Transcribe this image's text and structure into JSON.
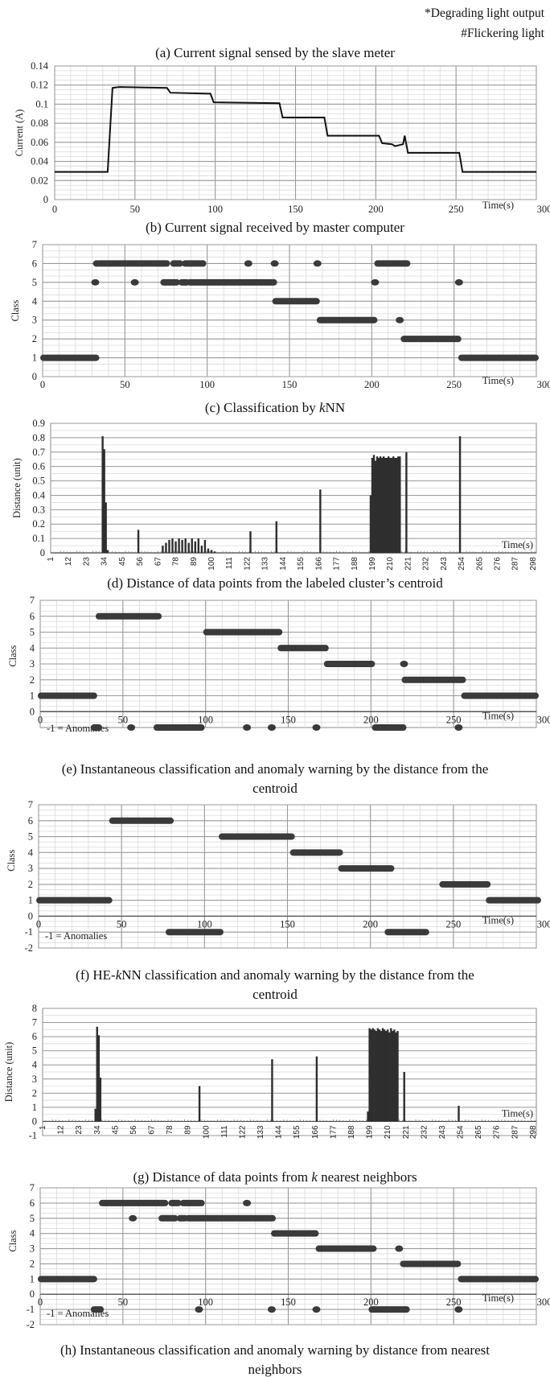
{
  "notes": {
    "line1": "*Degrading light output",
    "line2": "#Flickering light"
  },
  "panels": [
    {
      "caption_lines": [
        "(a) Current signal sensed by the slave meter"
      ],
      "chart": {
        "type": "line",
        "ylabel": "Current (A)",
        "xlabel": "Time(s)",
        "xlim": [
          0,
          300
        ],
        "ylim": [
          0,
          0.14
        ],
        "x_ticks": [
          0,
          50,
          100,
          150,
          200,
          250,
          300
        ],
        "y_ticks": [
          "0",
          "0.02",
          "0.04",
          "0.06",
          "0.08",
          "0.1",
          "0.12",
          "0.14"
        ],
        "x": [
          0,
          33,
          36,
          40,
          70,
          72,
          97,
          99,
          140,
          142,
          168,
          170,
          202,
          204,
          210,
          212,
          217,
          218,
          219,
          220,
          252,
          254,
          300
        ],
        "y": [
          0.029,
          0.029,
          0.117,
          0.118,
          0.117,
          0.112,
          0.111,
          0.102,
          0.101,
          0.086,
          0.086,
          0.067,
          0.067,
          0.059,
          0.058,
          0.056,
          0.058,
          0.067,
          0.058,
          0.049,
          0.049,
          0.029,
          0.029
        ]
      }
    },
    {
      "caption_lines": [
        "(b) Current signal received by master computer"
      ],
      "chart": {
        "type": "scatter",
        "ylabel": "Class",
        "xlabel": "Time(s)",
        "xlim": [
          0,
          300
        ],
        "ylim": [
          0,
          7
        ],
        "x_ticks": [
          0,
          50,
          100,
          150,
          200,
          250,
          300
        ],
        "y_ticks": [
          "0",
          "1",
          "2",
          "3",
          "4",
          "5",
          "6",
          "7"
        ],
        "segments": [
          {
            "x": [
              0,
              33
            ],
            "y": 1
          },
          {
            "x": 32,
            "y": 5
          },
          {
            "x": 33,
            "y": 6
          },
          {
            "x": 33,
            "y": 6
          },
          {
            "x": [
              34,
              76
            ],
            "y": 6
          },
          {
            "x": 56,
            "y": 5
          },
          {
            "x": [
              73,
              82
            ],
            "y": 5
          },
          {
            "x": [
              79,
              84
            ],
            "y": 6
          },
          {
            "x": [
              84,
              88
            ],
            "y": 5
          },
          {
            "x": [
              86,
              98
            ],
            "y": 6
          },
          {
            "x": [
              89,
              141
            ],
            "y": 5
          },
          {
            "x": 125,
            "y": 6
          },
          {
            "x": 141,
            "y": 6
          },
          {
            "x": [
              141,
              167
            ],
            "y": 4
          },
          {
            "x": 167,
            "y": 6
          },
          {
            "x": [
              168,
              202
            ],
            "y": 3
          },
          {
            "x": 202,
            "y": 5
          },
          {
            "x": [
              203,
              222
            ],
            "y": 6
          },
          {
            "x": 217,
            "y": 3
          },
          {
            "x": [
              219,
              253
            ],
            "y": 2
          },
          {
            "x": 253,
            "y": 5
          },
          {
            "x": [
              254,
              300
            ],
            "y": 1
          }
        ]
      }
    },
    {
      "caption_lines": [
        "(c) Classification by ",
        "NN"
      ],
      "caption_italic": "k",
      "chart": {
        "type": "bar",
        "ylabel": "Distance (unit)",
        "xlabel": "Time(s)",
        "ylim": [
          0,
          0.9
        ],
        "y_ticks": [
          "0",
          "0.1",
          "0.2",
          "0.3",
          "0.4",
          "0.5",
          "0.6",
          "0.7",
          "0.8",
          "0.9"
        ],
        "categories": [
          "1",
          "12",
          "23",
          "34",
          "45",
          "56",
          "67",
          "78",
          "89",
          "100",
          "111",
          "122",
          "133",
          "144",
          "155",
          "166",
          "177",
          "188",
          "199",
          "210",
          "221",
          "232",
          "243",
          "254",
          "265",
          "276",
          "287",
          "298"
        ],
        "x": [
          33,
          34,
          35,
          36,
          55,
          70,
          72,
          74,
          76,
          78,
          80,
          82,
          84,
          86,
          88,
          90,
          92,
          94,
          96,
          98,
          100,
          102,
          124,
          140,
          167,
          198,
          199,
          200,
          201,
          202,
          203,
          204,
          205,
          206,
          207,
          208,
          209,
          210,
          211,
          212,
          213,
          214,
          215,
          216,
          220,
          253
        ],
        "values": [
          0.81,
          0.72,
          0.35,
          0.02,
          0.16,
          0.05,
          0.07,
          0.09,
          0.1,
          0.08,
          0.1,
          0.09,
          0.1,
          0.07,
          0.1,
          0.08,
          0.1,
          0.05,
          0.09,
          0.03,
          0.02,
          0.01,
          0.15,
          0.22,
          0.44,
          0.4,
          0.66,
          0.68,
          0.64,
          0.67,
          0.66,
          0.67,
          0.66,
          0.67,
          0.66,
          0.66,
          0.67,
          0.66,
          0.66,
          0.67,
          0.66,
          0.66,
          0.67,
          0.67,
          0.7,
          0.81
        ]
      }
    },
    {
      "caption_lines": [
        "(d) Distance of data points from the labeled cluster’s centroid"
      ],
      "chart": {
        "type": "scatter",
        "ylabel": "Class",
        "xlabel": "Time(s)",
        "legend": "-1 = Anomalies",
        "xlim": [
          0,
          300
        ],
        "ylim": [
          -1,
          7
        ],
        "x_ticks": [
          0,
          50,
          100,
          150,
          200,
          250,
          300
        ],
        "y_ticks": [
          "0",
          "1",
          "2",
          "3",
          "4",
          "5",
          "6",
          "7"
        ],
        "segments": [
          {
            "x": [
              0,
              33
            ],
            "y": 1
          },
          {
            "x": [
              35,
              72
            ],
            "y": 6
          },
          {
            "x": [
              100,
              145
            ],
            "y": 5
          },
          {
            "x": [
              145,
              173
            ],
            "y": 4
          },
          {
            "x": [
              173,
              201
            ],
            "y": 3
          },
          {
            "x": 220,
            "y": 3
          },
          {
            "x": [
              220,
              256
            ],
            "y": 2
          },
          {
            "x": [
              256,
              300
            ],
            "y": 1
          },
          {
            "x": [
              32,
              36
            ],
            "y": -1
          },
          {
            "x": 55,
            "y": -1
          },
          {
            "x": [
              70,
              98
            ],
            "y": -1
          },
          {
            "x": 125,
            "y": -1
          },
          {
            "x": 140,
            "y": -1
          },
          {
            "x": 167,
            "y": -1
          },
          {
            "x": [
              202,
              220
            ],
            "y": -1
          },
          {
            "x": 253,
            "y": -1
          }
        ]
      }
    },
    {
      "caption_lines": [
        "(e) Instantaneous classification and anomaly warning by the distance from the",
        "centroid"
      ],
      "chart": {
        "type": "scatter",
        "ylabel": "Class",
        "xlabel": "Time(s)",
        "legend": "-1 = Anomalies",
        "xlim": [
          0,
          300
        ],
        "ylim": [
          -2,
          7
        ],
        "x_ticks": [
          0,
          50,
          100,
          150,
          200,
          250,
          300
        ],
        "y_ticks": [
          "-2",
          "-1",
          "0",
          "1",
          "2",
          "3",
          "4",
          "5",
          "6",
          "7"
        ],
        "segments": [
          {
            "x": [
              0,
              43
            ],
            "y": 1
          },
          {
            "x": [
              44,
              80
            ],
            "y": 6
          },
          {
            "x": [
              110,
              153
            ],
            "y": 5
          },
          {
            "x": [
              153,
              182
            ],
            "y": 4
          },
          {
            "x": [
              182,
              213
            ],
            "y": 3
          },
          {
            "x": [
              243,
              271
            ],
            "y": 2
          },
          {
            "x": [
              271,
              310
            ],
            "y": 1
          },
          {
            "x": [
              78,
              110
            ],
            "y": -1
          },
          {
            "x": [
              210,
              234
            ],
            "y": -1
          }
        ]
      }
    },
    {
      "caption_lines": [
        "(f) HE-",
        "NN classification and anomaly warning by the distance from the",
        "centroid"
      ],
      "caption_italic": "k",
      "chart": {
        "type": "bar",
        "ylabel": "Distance (unit)",
        "xlabel": "Time(s)",
        "ylim": [
          -1,
          8
        ],
        "y_ticks": [
          "-1",
          "0",
          "1",
          "2",
          "3",
          "4",
          "5",
          "6",
          "7",
          "8"
        ],
        "categories": [
          "1",
          "12",
          "23",
          "34",
          "45",
          "56",
          "67",
          "78",
          "89",
          "100",
          "111",
          "122",
          "133",
          "144",
          "155",
          "166",
          "177",
          "188",
          "199",
          "210",
          "221",
          "232",
          "243",
          "254",
          "265",
          "276",
          "287",
          "298"
        ],
        "x": [
          33,
          34,
          35,
          36,
          96,
          140,
          167,
          198,
          199,
          200,
          201,
          202,
          203,
          204,
          205,
          206,
          207,
          208,
          209,
          210,
          211,
          212,
          213,
          214,
          215,
          216,
          220,
          253
        ],
        "values": [
          0.9,
          6.7,
          6.1,
          3.1,
          2.5,
          4.4,
          4.6,
          0.7,
          6.6,
          6.5,
          6.6,
          6.5,
          6.4,
          6.6,
          6.5,
          6.4,
          6.6,
          6.5,
          6.4,
          6.5,
          6.3,
          6.6,
          6.4,
          6.5,
          6.3,
          6.4,
          3.5,
          1.1
        ]
      }
    },
    {
      "caption_lines": [
        "(g) Distance of data points from ",
        " nearest neighbors"
      ],
      "caption_italic": "k",
      "chart": {
        "type": "scatter",
        "ylabel": "Class",
        "xlabel": "Time(s)",
        "legend": "-1 = Anomalies",
        "xlim": [
          0,
          300
        ],
        "ylim": [
          -2,
          7
        ],
        "x_ticks": [
          0,
          50,
          100,
          150,
          200,
          250,
          300
        ],
        "y_ticks": [
          "-2",
          "-1",
          "0",
          "1",
          "2",
          "3",
          "4",
          "5",
          "6",
          "7"
        ],
        "segments": [
          {
            "x": [
              0,
              33
            ],
            "y": 1
          },
          {
            "x": [
              37,
              76
            ],
            "y": 6
          },
          {
            "x": 56,
            "y": 5
          },
          {
            "x": [
              73,
              82
            ],
            "y": 5
          },
          {
            "x": [
              79,
              84
            ],
            "y": 6
          },
          {
            "x": [
              84,
              88
            ],
            "y": 5
          },
          {
            "x": [
              86,
              98
            ],
            "y": 6
          },
          {
            "x": [
              89,
              141
            ],
            "y": 5
          },
          {
            "x": 125,
            "y": 6
          },
          {
            "x": [
              141,
              167
            ],
            "y": 4
          },
          {
            "x": [
              168,
              202
            ],
            "y": 3
          },
          {
            "x": 217,
            "y": 3
          },
          {
            "x": [
              219,
              253
            ],
            "y": 2
          },
          {
            "x": [
              254,
              300
            ],
            "y": 1
          },
          {
            "x": [
              32,
              37
            ],
            "y": -1
          },
          {
            "x": 96,
            "y": -1
          },
          {
            "x": 140,
            "y": -1
          },
          {
            "x": 167,
            "y": -1
          },
          {
            "x": [
              200,
              222
            ],
            "y": -1
          },
          {
            "x": 253,
            "y": -1
          }
        ]
      }
    }
  ],
  "last_caption_lines": [
    "(h) Instantaneous classification and anomaly warning by distance from nearest",
    "neighbors"
  ]
}
